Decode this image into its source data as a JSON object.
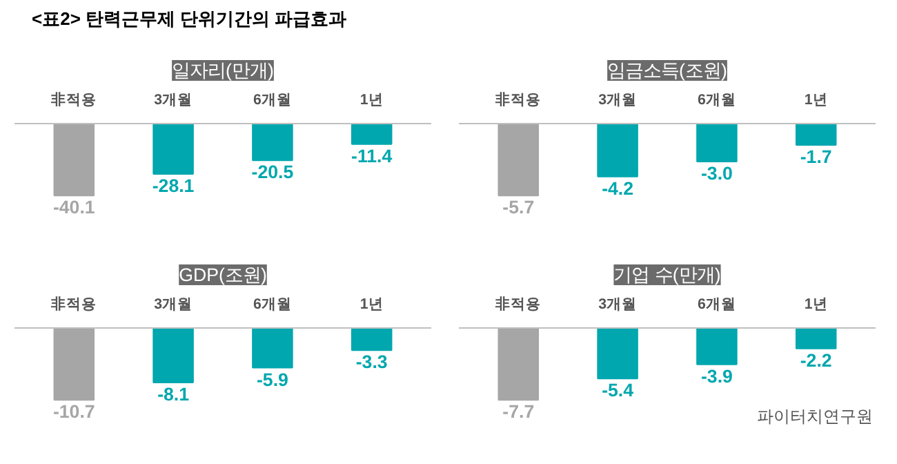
{
  "chart_data": [
    {
      "type": "bar",
      "title": "<표2> 탄력근무제 단위기간의 파급효과",
      "subtitle": "일자리(만개)",
      "categories": [
        "非적용",
        "3개월",
        "6개월",
        "1년"
      ],
      "values": [
        -40.1,
        -28.1,
        -20.5,
        -11.4
      ],
      "colors": [
        "#a6a6a6",
        "#00a7ae",
        "#00a7ae",
        "#00a7ae"
      ],
      "value_labels": [
        "-40.1",
        "-28.1",
        "-20.5",
        "-11.4"
      ]
    },
    {
      "type": "bar",
      "title": "임금소득(조원)",
      "categories": [
        "非적용",
        "3개월",
        "6개월",
        "1년"
      ],
      "values": [
        -5.7,
        -4.2,
        -3.0,
        -1.7
      ],
      "colors": [
        "#a6a6a6",
        "#00a7ae",
        "#00a7ae",
        "#00a7ae"
      ],
      "value_labels": [
        "-5.7",
        "-4.2",
        "-3.0",
        "-1.7"
      ]
    },
    {
      "type": "bar",
      "title": "GDP(조원)",
      "categories": [
        "非적용",
        "3개월",
        "6개월",
        "1년"
      ],
      "values": [
        -10.7,
        -8.1,
        -5.9,
        -3.3
      ],
      "colors": [
        "#a6a6a6",
        "#00a7ae",
        "#00a7ae",
        "#00a7ae"
      ],
      "value_labels": [
        "-10.7",
        "-8.1",
        "-5.9",
        "-3.3"
      ]
    },
    {
      "type": "bar",
      "title": "기업 수(만개)",
      "categories": [
        "非적용",
        "3개월",
        "6개월",
        "1년"
      ],
      "values": [
        -7.7,
        -5.4,
        -3.9,
        -2.2
      ],
      "colors": [
        "#a6a6a6",
        "#00a7ae",
        "#00a7ae",
        "#00a7ae"
      ],
      "value_labels": [
        "-7.7",
        "-5.4",
        "-3.9",
        "-2.2"
      ],
      "annotations": [
        "파이터치연구원"
      ]
    }
  ]
}
